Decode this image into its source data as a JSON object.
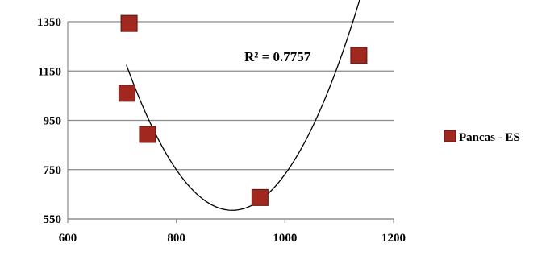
{
  "chart_data": {
    "type": "scatter",
    "title": "",
    "xlabel": "",
    "ylabel": "",
    "x_tick_labels": [
      "600",
      "800",
      "1000",
      "1200"
    ],
    "y_tick_labels": [
      "550",
      "750",
      "950",
      "1150",
      "1350"
    ],
    "xlim": [
      600,
      1200
    ],
    "ylim": [
      550,
      1350
    ],
    "grid": "horizontal",
    "legend_position": "right",
    "series": [
      {
        "name": "Pancas - ES",
        "color": "#a0281e",
        "marker": "square",
        "points": [
          {
            "x": 713,
            "y": 1343
          },
          {
            "x": 709,
            "y": 1060
          },
          {
            "x": 747,
            "y": 893
          },
          {
            "x": 954,
            "y": 637
          },
          {
            "x": 1136,
            "y": 1213
          }
        ]
      }
    ],
    "trendline": {
      "type": "polynomial",
      "order": 2,
      "color": "#000000",
      "x_range": [
        708,
        1140
      ],
      "vertex": {
        "x": 903,
        "y": 585
      },
      "anchor": {
        "x": 708,
        "y": 1175
      },
      "label": "R² = 0.7757"
    }
  }
}
